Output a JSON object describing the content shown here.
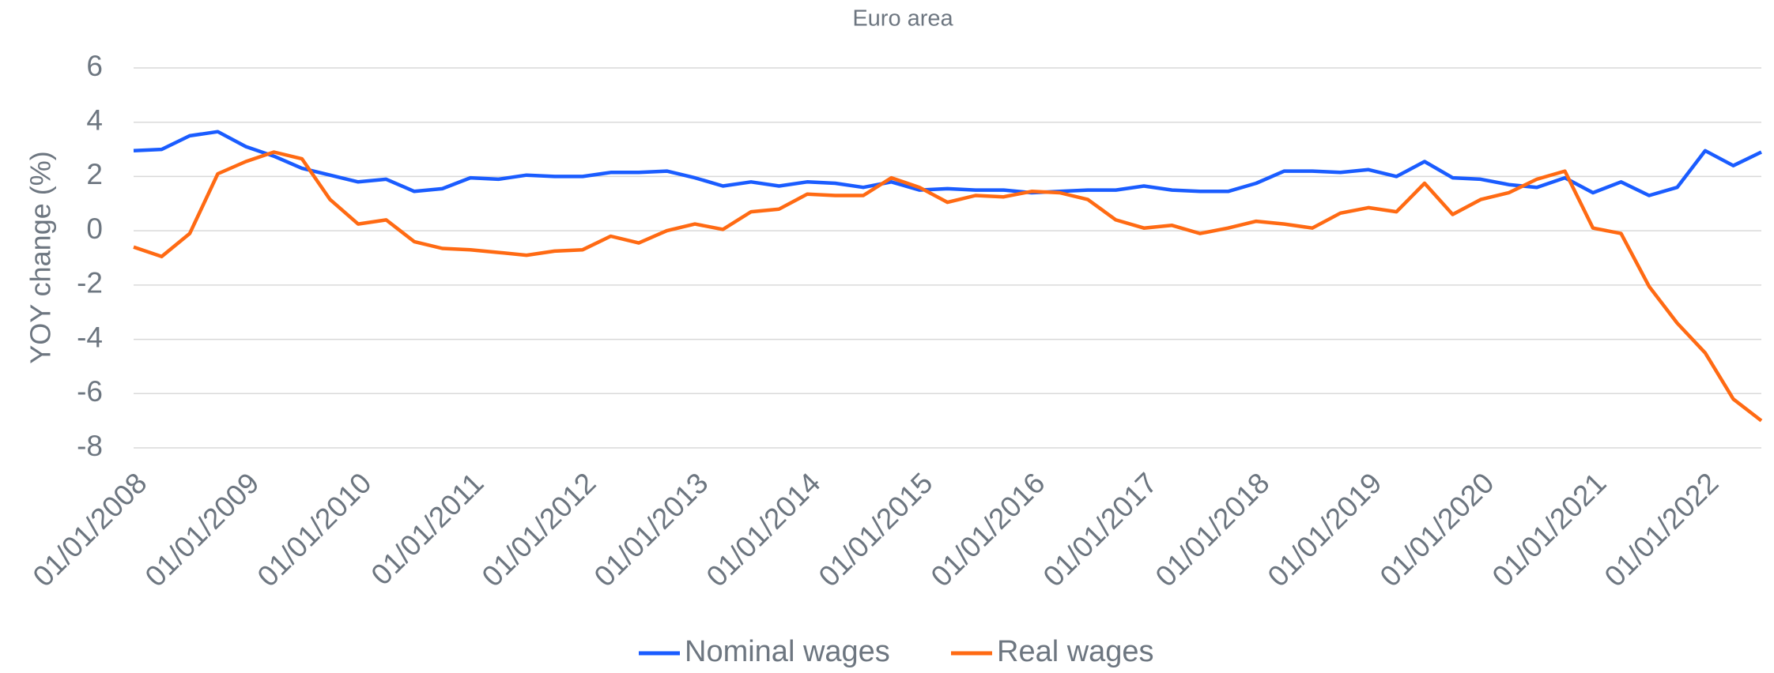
{
  "chart_data": {
    "type": "line",
    "title": "Euro area",
    "y_label": "YOY change (%)",
    "categories": [
      "01/01/2008",
      null,
      null,
      null,
      "01/01/2009",
      null,
      null,
      null,
      "01/01/2010",
      null,
      null,
      null,
      "01/01/2011",
      null,
      null,
      null,
      "01/01/2012",
      null,
      null,
      null,
      "01/01/2013",
      null,
      null,
      null,
      "01/01/2014",
      null,
      null,
      null,
      "01/01/2015",
      null,
      null,
      null,
      "01/01/2016",
      null,
      null,
      null,
      "01/01/2017",
      null,
      null,
      null,
      "01/01/2018",
      null,
      null,
      null,
      "01/01/2019",
      null,
      null,
      null,
      "01/01/2020",
      null,
      null,
      null,
      "01/01/2021",
      null,
      null,
      null,
      "01/01/2022",
      null,
      null
    ],
    "series": [
      {
        "name": "Nominal wages",
        "color": "#1a5cff",
        "values": [
          2.95,
          3.0,
          3.5,
          3.65,
          3.1,
          2.75,
          2.3,
          2.05,
          1.8,
          1.9,
          1.45,
          1.55,
          1.95,
          1.9,
          2.05,
          2.0,
          2.0,
          2.15,
          2.15,
          2.2,
          1.95,
          1.65,
          1.8,
          1.65,
          1.8,
          1.75,
          1.6,
          1.8,
          1.5,
          1.55,
          1.5,
          1.5,
          1.4,
          1.45,
          1.5,
          1.5,
          1.65,
          1.5,
          1.45,
          1.45,
          1.75,
          2.2,
          2.2,
          2.15,
          2.25,
          2.0,
          2.55,
          1.95,
          1.9,
          1.7,
          1.6,
          1.95,
          1.4,
          1.8,
          1.3,
          1.6,
          2.95,
          2.4,
          2.9
        ]
      },
      {
        "name": "Real wages",
        "color": "#ff6a13",
        "values": [
          -0.6,
          -0.95,
          -0.1,
          2.1,
          2.55,
          2.9,
          2.65,
          1.15,
          0.25,
          0.4,
          -0.4,
          -0.65,
          -0.7,
          -0.8,
          -0.9,
          -0.75,
          -0.7,
          -0.2,
          -0.45,
          0.0,
          0.25,
          0.05,
          0.7,
          0.8,
          1.35,
          1.3,
          1.3,
          1.95,
          1.6,
          1.05,
          1.3,
          1.25,
          1.45,
          1.4,
          1.15,
          0.4,
          0.1,
          0.2,
          -0.1,
          0.1,
          0.35,
          0.25,
          0.1,
          0.65,
          0.85,
          0.7,
          1.75,
          0.6,
          1.15,
          1.4,
          1.9,
          2.2,
          0.1,
          -0.1,
          -2.05,
          -3.4,
          -4.5,
          -6.2,
          -7.0
        ]
      }
    ],
    "ylim": [
      -8,
      6
    ],
    "yticks": [
      -8,
      -6,
      -4,
      -2,
      0,
      2,
      4,
      6
    ],
    "grid": true,
    "legend": "bottom"
  }
}
